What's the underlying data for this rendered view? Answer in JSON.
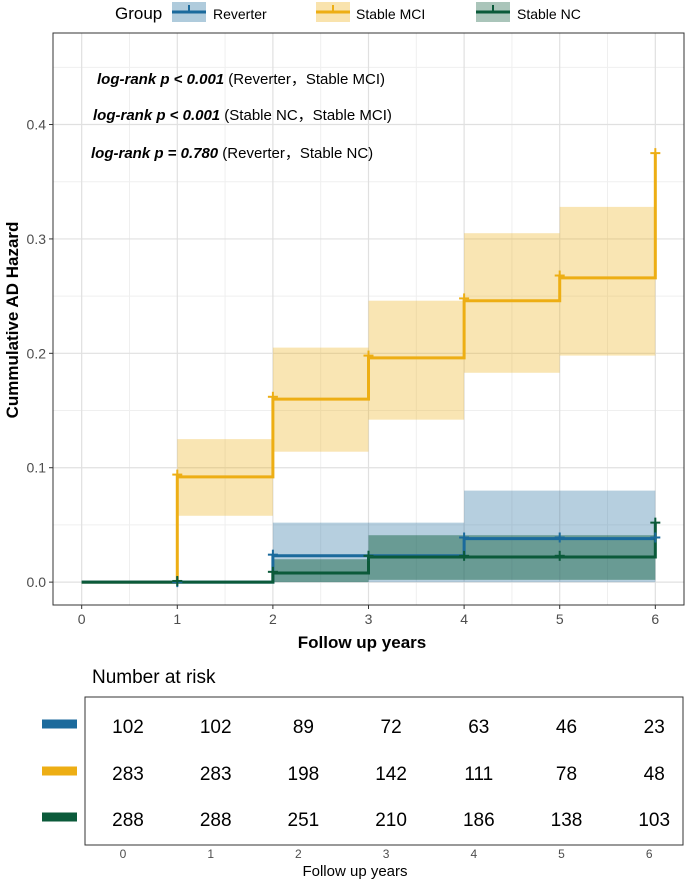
{
  "colors": {
    "reverter": "#1B6A9C",
    "stable_mci": "#EDAE14",
    "stable_nc": "#0B5A3A",
    "grid_major": "#E0E0E0",
    "grid_minor": "#EFEFEF"
  },
  "legend": {
    "title": "Group",
    "items": [
      {
        "key": "reverter",
        "label": "Reverter"
      },
      {
        "key": "stable_mci",
        "label": "Stable MCI"
      },
      {
        "key": "stable_nc",
        "label": "Stable NC"
      }
    ]
  },
  "annotations": [
    {
      "stat": "log-rank p < 0.001",
      "groups": " (Reverter，Stable MCI)"
    },
    {
      "stat": "log-rank p < 0.001",
      "groups": " (Stable NC，Stable MCI)"
    },
    {
      "stat": "log-rank p = 0.780",
      "groups": " (Reverter，Stable NC)"
    }
  ],
  "chart_data": {
    "type": "line",
    "subtype": "step",
    "title": "",
    "xlabel": "Follow up years",
    "ylabel": "Cummulative AD Hazard",
    "xlim": [
      -0.3,
      6.3
    ],
    "ylim": [
      -0.02,
      0.48
    ],
    "xticks": [
      "0",
      "1",
      "2",
      "3",
      "4",
      "5",
      "6"
    ],
    "yticks": [
      "0.0",
      "0.1",
      "0.2",
      "0.3",
      "0.4"
    ],
    "series": [
      {
        "name": "Reverter",
        "key": "reverter",
        "x": [
          0,
          1,
          2,
          3,
          4,
          5,
          6
        ],
        "values": [
          0,
          0,
          0.023,
          0.023,
          0.038,
          0.038,
          0.038
        ],
        "ci_lower": [
          0,
          0,
          0,
          0,
          0,
          0,
          0
        ],
        "ci_upper": [
          0,
          0,
          0.052,
          0.052,
          0.08,
          0.08,
          0.08
        ],
        "censor_marks": [
          [
            1,
            0
          ],
          [
            2,
            0.024
          ],
          [
            3,
            0.023
          ],
          [
            4,
            0.039
          ],
          [
            5,
            0.039
          ],
          [
            6,
            0.039
          ]
        ]
      },
      {
        "name": "Stable MCI",
        "key": "stable_mci",
        "x": [
          0,
          1,
          2,
          3,
          4,
          5,
          6
        ],
        "values": [
          0,
          0.092,
          0.16,
          0.196,
          0.246,
          0.266,
          0.375
        ],
        "ci_lower": [
          0,
          0.058,
          0.114,
          0.142,
          0.183,
          0.198
        ],
        "ci_upper": [
          0,
          0.125,
          0.205,
          0.246,
          0.305,
          0.328
        ],
        "censor_marks": [
          [
            1,
            0.094
          ],
          [
            2,
            0.162
          ],
          [
            3,
            0.198
          ],
          [
            4,
            0.248
          ],
          [
            5,
            0.268
          ],
          [
            6,
            0.375
          ]
        ]
      },
      {
        "name": "Stable NC",
        "key": "stable_nc",
        "x": [
          0,
          1,
          2,
          3,
          4,
          5,
          6
        ],
        "values": [
          0,
          0,
          0.008,
          0.022,
          0.022,
          0.022,
          0.052
        ],
        "ci_lower": [
          0,
          0,
          0,
          0.002,
          0.002,
          0.002
        ],
        "ci_upper": [
          0,
          0,
          0.02,
          0.041,
          0.041,
          0.041
        ],
        "censor_marks": [
          [
            1,
            0.001
          ],
          [
            2,
            0.009
          ],
          [
            3,
            0.023
          ],
          [
            4,
            0.023
          ],
          [
            5,
            0.023
          ],
          [
            6,
            0.052
          ]
        ]
      }
    ]
  },
  "risk_table": {
    "title": "Number at risk",
    "xlabel": "Follow up years",
    "columns": [
      "0",
      "1",
      "2",
      "3",
      "4",
      "5",
      "6"
    ],
    "rows": [
      {
        "key": "reverter",
        "values": [
          "102",
          "102",
          "89",
          "72",
          "63",
          "46",
          "23"
        ]
      },
      {
        "key": "stable_mci",
        "values": [
          "283",
          "283",
          "198",
          "142",
          "111",
          "78",
          "48"
        ]
      },
      {
        "key": "stable_nc",
        "values": [
          "288",
          "288",
          "251",
          "210",
          "186",
          "138",
          "103"
        ]
      }
    ]
  }
}
